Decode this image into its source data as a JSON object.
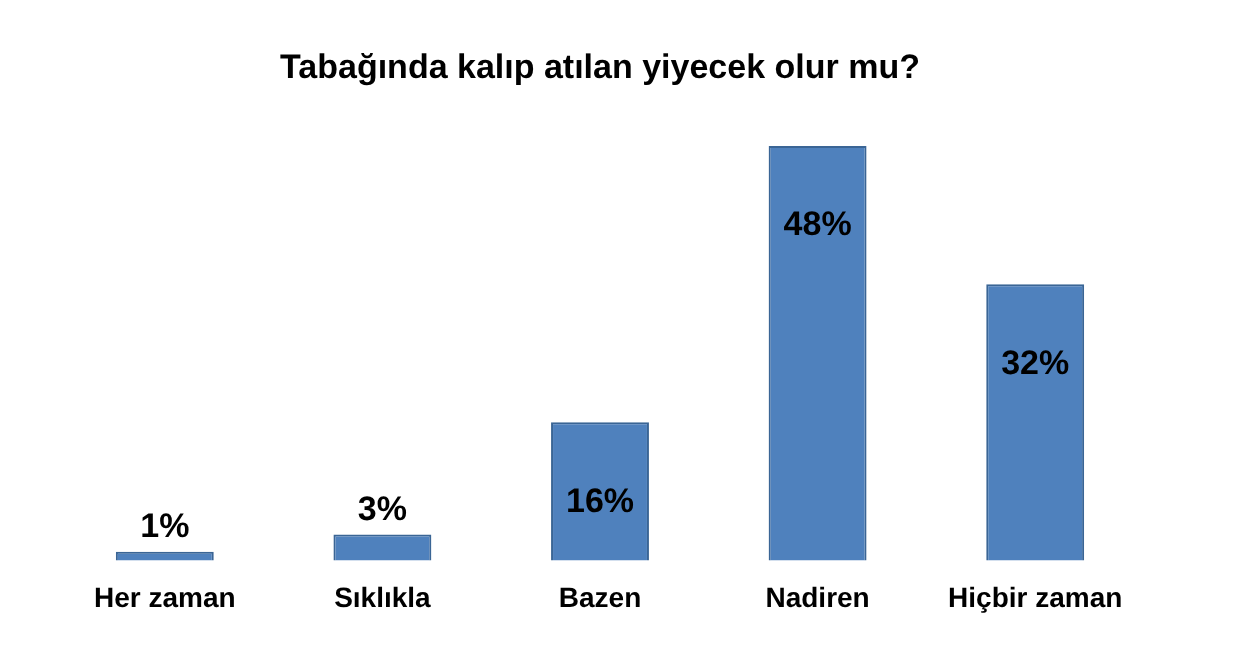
{
  "chart_data": {
    "type": "bar",
    "title": "Tabağında kalıp atılan yiyecek olur mu?",
    "categories": [
      "Her zaman",
      "Sıklıkla",
      "Bazen",
      "Nadiren",
      "Hiçbir zaman"
    ],
    "values": [
      1,
      3,
      16,
      48,
      32
    ],
    "color": "#4f81bd",
    "value_labels": [
      "1%",
      "3%",
      "16%",
      "48%",
      "32%"
    ]
  }
}
